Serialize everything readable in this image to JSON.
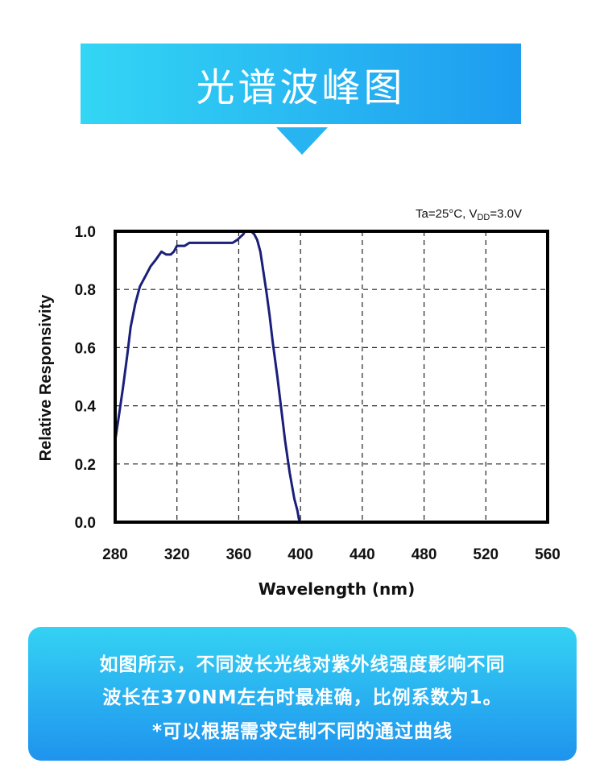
{
  "header": {
    "title": "光谱波峰图"
  },
  "chart_data": {
    "type": "line",
    "annotation": "Ta=25°C, V",
    "annotation_sub": "DD",
    "annotation_tail": "=3.0V",
    "xlabel": "Wavelength (nm)",
    "ylabel": "Relative Responsivity",
    "xlim": [
      280,
      560
    ],
    "ylim": [
      0.0,
      1.0
    ],
    "x_ticks": [
      "280",
      "320",
      "360",
      "400",
      "440",
      "480",
      "520",
      "560"
    ],
    "y_ticks": [
      "0.0",
      "0.2",
      "0.4",
      "0.6",
      "0.8",
      "1.0"
    ],
    "grid": true,
    "series": [
      {
        "color": "#1a1f7a",
        "x": [
          280,
          282,
          285,
          288,
          290,
          293,
          296,
          300,
          303,
          306,
          310,
          313,
          316,
          318,
          320,
          322,
          325,
          328,
          330,
          333,
          336,
          340,
          343,
          346,
          350,
          353,
          356,
          359,
          361,
          363,
          364,
          366,
          368,
          370,
          372,
          374,
          376,
          378,
          380,
          382,
          385,
          388,
          390,
          393,
          396,
          398,
          399,
          400
        ],
        "y": [
          0.28,
          0.35,
          0.46,
          0.58,
          0.67,
          0.75,
          0.81,
          0.85,
          0.88,
          0.9,
          0.93,
          0.92,
          0.92,
          0.93,
          0.95,
          0.95,
          0.95,
          0.96,
          0.96,
          0.96,
          0.96,
          0.96,
          0.96,
          0.96,
          0.96,
          0.96,
          0.96,
          0.97,
          0.98,
          0.99,
          1.0,
          1.0,
          1.0,
          0.99,
          0.97,
          0.93,
          0.86,
          0.79,
          0.71,
          0.62,
          0.5,
          0.37,
          0.28,
          0.17,
          0.08,
          0.04,
          0.01,
          0.0
        ]
      }
    ]
  },
  "description": {
    "lines": [
      "如图所示，不同波长光线对紫外线强度影响不同",
      "波长在370NM左右时最准确，比例系数为1。",
      "*可以根据需求定制不同的通过曲线"
    ]
  }
}
